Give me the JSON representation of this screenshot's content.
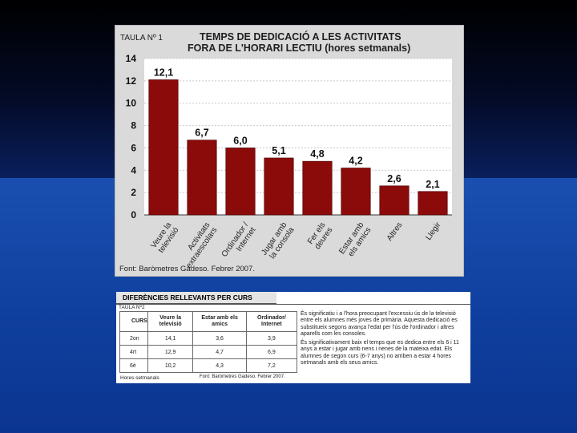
{
  "chart_data": {
    "type": "bar",
    "table_label": "TAULA Nº 1",
    "title_line1": "TEMPS DE DEDICACIÓ A LES ACTIVITATS",
    "title_line2": "FORA DE L'HORARI LECTIU (hores setmanals)",
    "categories": [
      [
        "Veure la",
        "televisió"
      ],
      [
        "Activitats",
        "extraescolars"
      ],
      [
        "Ordinador /",
        "Internet"
      ],
      [
        "Jugar amb",
        "la consola"
      ],
      [
        "Fer els",
        "deures"
      ],
      [
        "Estar amb",
        "els amics"
      ],
      [
        "Altres"
      ],
      [
        "Llegir"
      ]
    ],
    "values": [
      12.1,
      6.7,
      6.0,
      5.1,
      4.8,
      4.2,
      2.6,
      2.1
    ],
    "data_labels": [
      "12,1",
      "6,7",
      "6,0",
      "5,1",
      "4,8",
      "4,2",
      "2,6",
      "2,1"
    ],
    "ylim": [
      0,
      14
    ],
    "yticks": [
      0,
      2,
      4,
      6,
      8,
      10,
      12,
      14
    ],
    "grid": true,
    "bar_color": "#8b0a0a",
    "source": "Font: Baròmetres Gadeso. Febrer 2007."
  },
  "table": {
    "header_tab": "DIFERÈNCIES RELLEVANTS PER CURS",
    "label": "TAULA Nº2",
    "columns": [
      "CURS",
      "Veure la televisió",
      "Estar amb els amics",
      "Ordinador/ Internet"
    ],
    "rows": [
      [
        "2on",
        "14,1",
        "3,6",
        "3,9"
      ],
      [
        "4rt",
        "12,9",
        "4,7",
        "6,9"
      ],
      [
        "6è",
        "10,2",
        "4,3",
        "7,2"
      ]
    ],
    "units": "Hores setmanals",
    "source": "Font: Baròmetres Gadeso. Febrer 2007.",
    "paragraph1": "És significatiu i a l'hora preocupant l'excessiu ús de la televisió entre els alumnes més joves de primària. Aquesta dedicació es substitueix segons avança l'edat per l'ús de l'ordinador i altres aparells com les consoles.",
    "paragraph2": "És significativament baix el temps que es dedica entre els 6 i 11 anys a estar i jugar amb nens i nenes de la mateixa edat. Els alumnes de segon curs (6-7 anys) no arriben a estar 4 hores setmanals amb els seus amics."
  }
}
